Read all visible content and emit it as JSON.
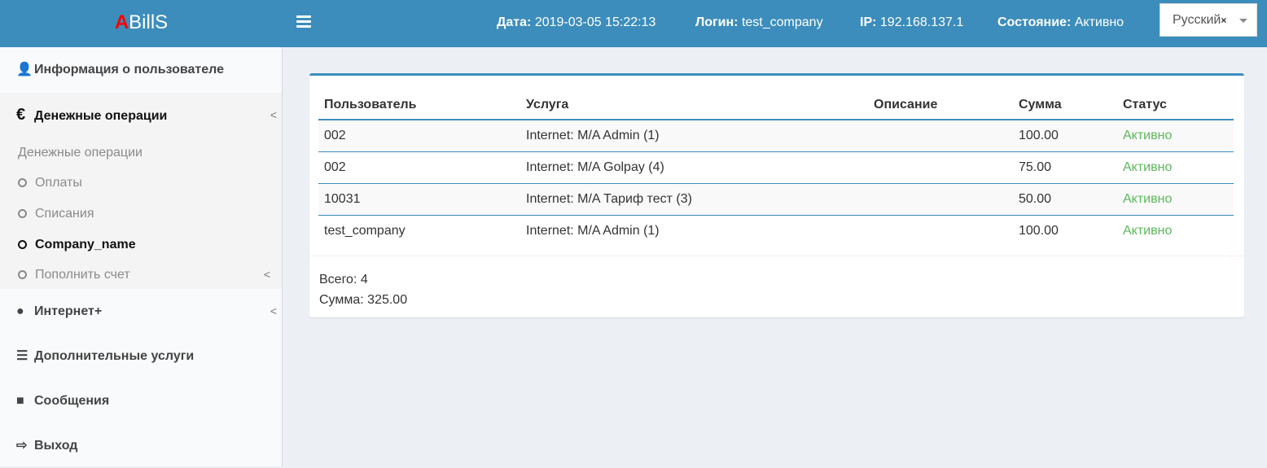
{
  "header": {
    "logo_accent": "A",
    "logo_rest": "BillS",
    "date_label": "Дата:",
    "date": "2019-03-05 15:22:13",
    "login_label": "Логин:",
    "login": "test_company",
    "ip_label": "IP:",
    "ip": "192.168.137.1",
    "state_label": "Состояние:",
    "state": "Активно",
    "language": "Русский",
    "language_clear": "×"
  },
  "sidebar": {
    "user_info": "Информация о пользователе",
    "money": "Денежные операции",
    "money_sub": {
      "header": "Денежные операции",
      "items": [
        "Оплаты",
        "Списания",
        "Company_name",
        "Пополнить счет"
      ]
    },
    "internet": "Интернет+",
    "extra": "Дополнительные услуги",
    "messages": "Сообщения",
    "logout": "Выход"
  },
  "table": {
    "columns": [
      "Пользователь",
      "Услуга",
      "Описание",
      "Сумма",
      "Статус"
    ],
    "rows": [
      [
        "002",
        "Internet: M/A Admin (1)",
        "",
        "100.00",
        "Активно"
      ],
      [
        "002",
        "Internet: M/A Golpay (4)",
        "",
        "75.00",
        "Активно"
      ],
      [
        "10031",
        "Internet: M/A Тариф тест (3)",
        "",
        "50.00",
        "Активно"
      ],
      [
        "test_company",
        "Internet: M/A Admin (1)",
        "",
        "100.00",
        "Активно"
      ]
    ]
  },
  "footer": {
    "total": "Всего: 4",
    "sum": "Сумма: 325.00"
  },
  "colors": {
    "header": "#3c8dbc",
    "status_active": "#5cb85c",
    "logo_accent": "#ff0000"
  }
}
